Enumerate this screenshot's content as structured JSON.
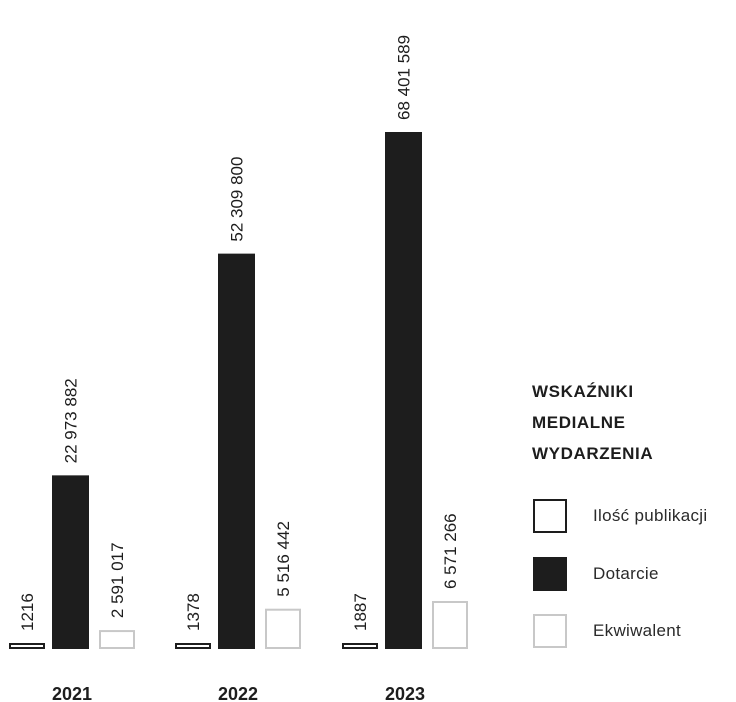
{
  "chart_data": {
    "type": "bar",
    "categories": [
      "2021",
      "2022",
      "2023"
    ],
    "series": [
      {
        "name": "Ilość publikacji",
        "values": [
          1216,
          1378,
          1887
        ],
        "labels": [
          "1216",
          "1378",
          "1887"
        ],
        "color": "#ffffff",
        "stroke": "#1d1d1d"
      },
      {
        "name": "Dotarcie",
        "values": [
          22973882,
          52309800,
          68401589
        ],
        "labels": [
          "22 973 882",
          "52 309 800",
          "68 401 589"
        ],
        "color": "#1d1d1d",
        "stroke": "#1d1d1d"
      },
      {
        "name": "Ekwiwalent",
        "values": [
          2591017,
          5516442,
          6571266
        ],
        "labels": [
          "2 591 017",
          "5 516 442",
          "6 571 266"
        ],
        "color": "#ffffff",
        "stroke": "#c8c8c8"
      }
    ],
    "legend": {
      "title_lines": [
        "WSKAŹNIKI",
        "MEDIALNE",
        "WYDARZENIA"
      ],
      "position": "right"
    }
  }
}
